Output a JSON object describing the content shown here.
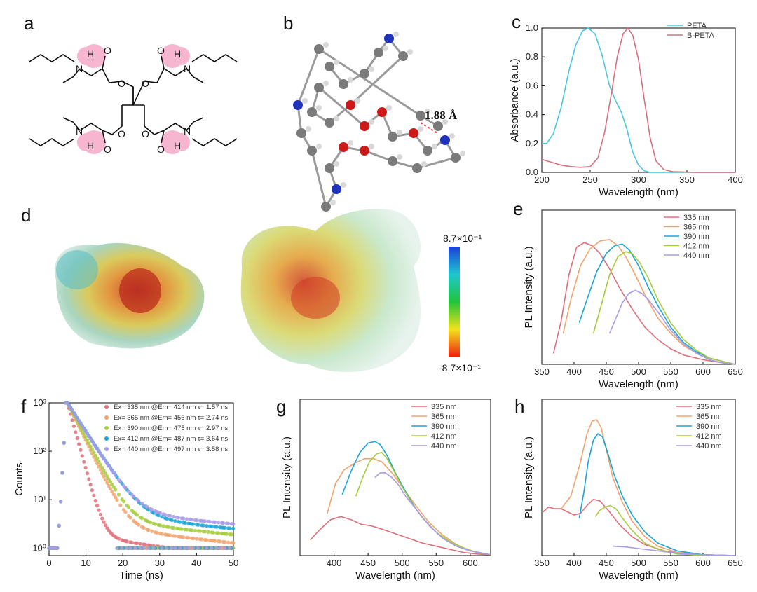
{
  "panel_labels": [
    "a",
    "b",
    "c",
    "d",
    "e",
    "f",
    "g",
    "h"
  ],
  "panel_b": {
    "distance_label": "1.88 Å"
  },
  "panel_d": {
    "scale_max": "8.7×10⁻¹",
    "scale_min": "-8.7×10⁻¹"
  },
  "colors": {
    "335": "#e06f7a",
    "365": "#f2a46e",
    "390": "#1ba6d6",
    "412": "#a6cc3c",
    "440": "#a99be6",
    "PETA": "#4ac8e0",
    "B-PETA": "#d9707e"
  },
  "chart_data": [
    {
      "id": "c",
      "type": "line",
      "xlabel": "Wavelength (nm)",
      "ylabel": "Absorbance (a.u.)",
      "xlim": [
        200,
        400
      ],
      "ylim": [
        0,
        1.0
      ],
      "xticks": [
        200,
        250,
        300,
        350,
        400
      ],
      "yticks": [
        0.0,
        0.2,
        0.4,
        0.6,
        0.8,
        1.0
      ],
      "legend": "top-right",
      "series": [
        {
          "name": "PETA",
          "color": "#4ac8e0",
          "x": [
            200,
            205,
            212,
            220,
            228,
            235,
            242,
            248,
            255,
            262,
            270,
            276,
            282,
            288,
            294,
            300,
            306,
            312,
            320,
            340,
            400
          ],
          "y": [
            0.2,
            0.2,
            0.27,
            0.45,
            0.7,
            0.88,
            0.98,
            1.0,
            0.96,
            0.82,
            0.6,
            0.5,
            0.42,
            0.3,
            0.14,
            0.05,
            0.01,
            0.0,
            0.0,
            0.0,
            0.0
          ]
        },
        {
          "name": "B-PETA",
          "color": "#d9707e",
          "x": [
            200,
            210,
            220,
            230,
            240,
            250,
            258,
            265,
            272,
            278,
            284,
            289,
            294,
            300,
            306,
            312,
            318,
            326,
            335,
            360,
            400
          ],
          "y": [
            0.09,
            0.07,
            0.05,
            0.04,
            0.035,
            0.04,
            0.1,
            0.28,
            0.55,
            0.8,
            0.96,
            1.0,
            0.95,
            0.78,
            0.5,
            0.24,
            0.08,
            0.02,
            0.005,
            0.0,
            0.0
          ]
        }
      ]
    },
    {
      "id": "e",
      "type": "line",
      "xlabel": "Wavelength (nm)",
      "ylabel": "PL Intensity (a.u.)",
      "xlim": [
        350,
        650
      ],
      "ylim": [
        0,
        1
      ],
      "xticks": [
        350,
        400,
        450,
        500,
        550,
        600,
        650
      ],
      "legend": "top-right",
      "series": [
        {
          "name": "335 nm",
          "color": "#e06f7a",
          "x": [
            368,
            380,
            392,
            404,
            416,
            428,
            440,
            455,
            470,
            490,
            510,
            530,
            550,
            570,
            600,
            630,
            650
          ],
          "y": [
            0.07,
            0.28,
            0.58,
            0.76,
            0.79,
            0.77,
            0.72,
            0.62,
            0.5,
            0.36,
            0.24,
            0.16,
            0.1,
            0.06,
            0.03,
            0.01,
            0.0
          ]
        },
        {
          "name": "365 nm",
          "color": "#f2a46e",
          "x": [
            383,
            395,
            410,
            425,
            440,
            455,
            468,
            480,
            495,
            510,
            530,
            550,
            570,
            600,
            630,
            650
          ],
          "y": [
            0.2,
            0.42,
            0.64,
            0.75,
            0.8,
            0.81,
            0.77,
            0.7,
            0.58,
            0.45,
            0.3,
            0.2,
            0.12,
            0.05,
            0.02,
            0.0
          ]
        },
        {
          "name": "390 nm",
          "color": "#1ba6d6",
          "x": [
            408,
            420,
            435,
            450,
            463,
            475,
            486,
            500,
            515,
            530,
            550,
            570,
            590,
            610,
            630,
            650
          ],
          "y": [
            0.27,
            0.42,
            0.6,
            0.72,
            0.77,
            0.78,
            0.74,
            0.64,
            0.5,
            0.38,
            0.24,
            0.14,
            0.08,
            0.04,
            0.02,
            0.0
          ]
        },
        {
          "name": "412 nm",
          "color": "#a6cc3c",
          "x": [
            430,
            442,
            455,
            468,
            480,
            490,
            502,
            515,
            530,
            550,
            570,
            590,
            610,
            630,
            650
          ],
          "y": [
            0.2,
            0.38,
            0.58,
            0.7,
            0.73,
            0.72,
            0.66,
            0.56,
            0.42,
            0.27,
            0.16,
            0.09,
            0.04,
            0.02,
            0.0
          ]
        },
        {
          "name": "440 nm",
          "color": "#a99be6",
          "x": [
            455,
            465,
            475,
            485,
            495,
            505,
            515,
            530,
            550,
            570,
            590,
            610,
            630,
            650
          ],
          "y": [
            0.2,
            0.3,
            0.4,
            0.46,
            0.48,
            0.46,
            0.42,
            0.34,
            0.22,
            0.13,
            0.07,
            0.03,
            0.01,
            0.0
          ]
        }
      ]
    },
    {
      "id": "f",
      "type": "scatter",
      "xlabel": "Time (ns)",
      "ylabel": "Counts",
      "yscale": "log",
      "xlim": [
        0,
        50
      ],
      "ylim": [
        0.7,
        1000
      ],
      "xticks": [
        0,
        10,
        20,
        30,
        40,
        50
      ],
      "ytick_labels": [
        "10⁰",
        "10¹",
        "10²",
        "10³"
      ],
      "legend": "top-right",
      "series": [
        {
          "name": "335 nm",
          "legend_text": "Ex= 335 nm @Em= 414 nm τ= 1.57 ns",
          "color": "#e06f7a",
          "tau": 1.57
        },
        {
          "name": "365 nm",
          "legend_text": "Ex= 365 nm @Em= 456 nm τ= 2.74 ns",
          "color": "#f2a46e",
          "tau": 2.74
        },
        {
          "name": "390 nm",
          "legend_text": "Ex= 390 nm @Em= 475 nm τ= 2.97 ns",
          "color": "#a6cc3c",
          "tau": 2.97
        },
        {
          "name": "412 nm",
          "legend_text": "Ex= 412 nm @Em= 487 nm τ= 3.64 ns",
          "color": "#1ba6d6",
          "tau": 3.64
        },
        {
          "name": "440 nm",
          "legend_text": "Ex= 440 nm @Em= 497 nm τ= 3.58 ns",
          "color": "#a99be6",
          "tau": 3.58
        }
      ]
    },
    {
      "id": "g",
      "type": "line",
      "xlabel": "Wavelength (nm)",
      "ylabel": "PL Intensity (a.u.)",
      "xlim": [
        350,
        630
      ],
      "ylim": [
        0,
        1
      ],
      "xticks": [
        400,
        450,
        500,
        550,
        600
      ],
      "legend": "top-right",
      "series": [
        {
          "name": "335 nm",
          "color": "#e06f7a",
          "x": [
            365,
            380,
            395,
            410,
            425,
            440,
            455,
            470,
            490,
            510,
            530,
            550,
            570,
            590,
            610,
            630
          ],
          "y": [
            0.1,
            0.17,
            0.23,
            0.25,
            0.23,
            0.2,
            0.19,
            0.17,
            0.14,
            0.11,
            0.08,
            0.06,
            0.04,
            0.02,
            0.01,
            0.005
          ]
        },
        {
          "name": "365 nm",
          "color": "#f2a46e",
          "x": [
            390,
            402,
            415,
            430,
            445,
            458,
            470,
            485,
            500,
            520,
            540,
            560,
            580,
            600,
            630
          ],
          "y": [
            0.27,
            0.46,
            0.55,
            0.59,
            0.62,
            0.62,
            0.6,
            0.53,
            0.44,
            0.32,
            0.21,
            0.13,
            0.07,
            0.03,
            0.005
          ]
        },
        {
          "name": "390 nm",
          "color": "#1ba6d6",
          "x": [
            412,
            425,
            438,
            450,
            460,
            468,
            478,
            490,
            505,
            520,
            540,
            560,
            580,
            600,
            630
          ],
          "y": [
            0.39,
            0.54,
            0.66,
            0.72,
            0.73,
            0.71,
            0.64,
            0.53,
            0.41,
            0.3,
            0.19,
            0.11,
            0.06,
            0.03,
            0.005
          ]
        },
        {
          "name": "412 nm",
          "color": "#a6cc3c",
          "x": [
            432,
            442,
            452,
            462,
            470,
            478,
            488,
            500,
            515,
            530,
            550,
            570,
            590,
            610,
            630
          ],
          "y": [
            0.38,
            0.5,
            0.6,
            0.65,
            0.66,
            0.62,
            0.54,
            0.44,
            0.33,
            0.24,
            0.15,
            0.09,
            0.05,
            0.02,
            0.005
          ]
        },
        {
          "name": "440 nm",
          "color": "#a99be6",
          "x": [
            460,
            468,
            475,
            485,
            495,
            505,
            520,
            540,
            560,
            580,
            600,
            630
          ],
          "y": [
            0.5,
            0.53,
            0.53,
            0.5,
            0.45,
            0.38,
            0.3,
            0.19,
            0.11,
            0.06,
            0.03,
            0.005
          ]
        }
      ]
    },
    {
      "id": "h",
      "type": "line",
      "xlabel": "Wavelength (nm)",
      "ylabel": "PL Intensity (a.u.)",
      "xlim": [
        350,
        650
      ],
      "ylim": [
        0,
        1
      ],
      "xticks": [
        350,
        400,
        450,
        500,
        550,
        600,
        650
      ],
      "legend": "top-right",
      "series": [
        {
          "name": "335 nm",
          "color": "#e06f7a",
          "x": [
            352,
            360,
            370,
            380,
            390,
            400,
            410,
            420,
            430,
            440,
            455,
            470,
            490,
            510,
            540,
            570,
            600,
            650
          ],
          "y": [
            0.28,
            0.31,
            0.3,
            0.3,
            0.28,
            0.26,
            0.27,
            0.32,
            0.36,
            0.35,
            0.28,
            0.2,
            0.12,
            0.07,
            0.03,
            0.01,
            0.005,
            0.0
          ]
        },
        {
          "name": "365 nm",
          "color": "#f2a46e",
          "x": [
            380,
            395,
            410,
            420,
            428,
            435,
            442,
            450,
            460,
            475,
            490,
            510,
            530,
            560,
            600,
            650
          ],
          "y": [
            0.3,
            0.38,
            0.6,
            0.78,
            0.86,
            0.87,
            0.82,
            0.68,
            0.5,
            0.34,
            0.22,
            0.12,
            0.06,
            0.02,
            0.005,
            0.0
          ]
        },
        {
          "name": "390 nm",
          "color": "#1ba6d6",
          "x": [
            408,
            415,
            422,
            430,
            437,
            444,
            452,
            462,
            475,
            490,
            510,
            530,
            560,
            600,
            650
          ],
          "y": [
            0.24,
            0.4,
            0.6,
            0.74,
            0.78,
            0.76,
            0.66,
            0.52,
            0.38,
            0.26,
            0.15,
            0.08,
            0.03,
            0.005,
            0.0
          ]
        },
        {
          "name": "412 nm",
          "color": "#a6cc3c",
          "x": [
            433,
            440,
            448,
            456,
            465,
            475,
            490,
            510,
            530,
            560,
            600,
            650
          ],
          "y": [
            0.25,
            0.29,
            0.31,
            0.32,
            0.3,
            0.24,
            0.16,
            0.08,
            0.04,
            0.01,
            0.0,
            0.0
          ]
        },
        {
          "name": "440 nm",
          "color": "#a99be6",
          "x": [
            460,
            480,
            500,
            530,
            560,
            600,
            650
          ],
          "y": [
            0.06,
            0.055,
            0.045,
            0.03,
            0.015,
            0.005,
            0.0
          ]
        }
      ]
    }
  ]
}
